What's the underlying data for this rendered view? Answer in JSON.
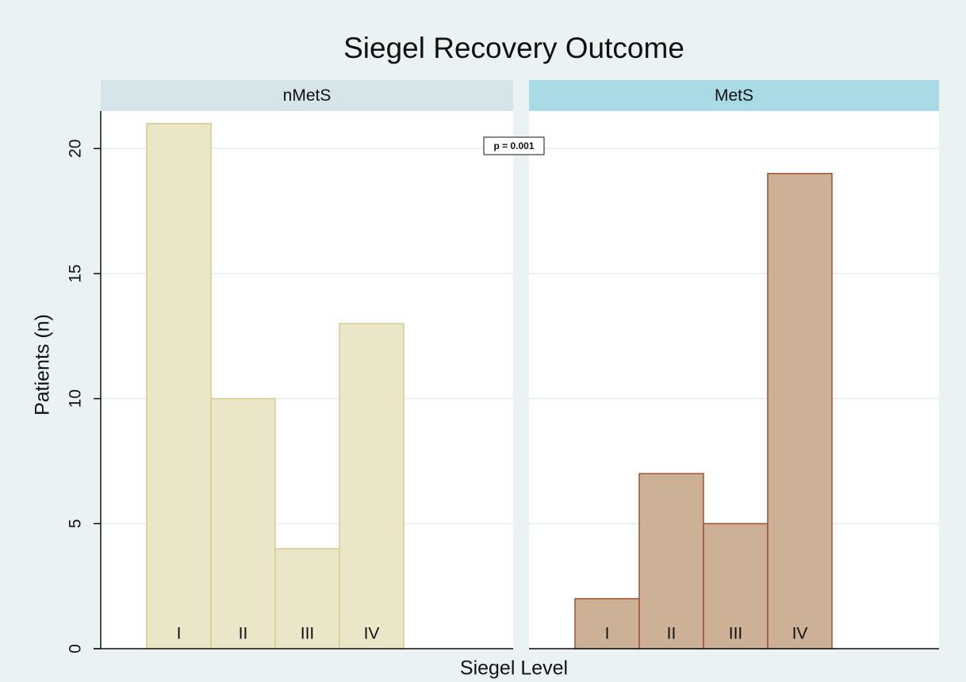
{
  "chart_data": {
    "type": "bar",
    "title": "Siegel Recovery Outcome",
    "xlabel": "Siegel Level",
    "ylabel": "Patients (n)",
    "annotation": "p = 0.001",
    "categories": [
      "I",
      "II",
      "III",
      "IV"
    ],
    "ylim": [
      0,
      21.5
    ],
    "yticks": [
      0,
      5,
      10,
      15,
      20
    ],
    "grid": true,
    "panels": [
      {
        "name": "nMetS",
        "color": "#ebe6c8",
        "edgecolor": "#d6cc92",
        "header_color": "#d6e5e9",
        "values": [
          21,
          10,
          4,
          13
        ]
      },
      {
        "name": "MetS",
        "color": "#cdb197",
        "edgecolor": "#a0522d",
        "header_color": "#a9dbe6",
        "values": [
          2,
          7,
          5,
          19
        ]
      }
    ]
  }
}
